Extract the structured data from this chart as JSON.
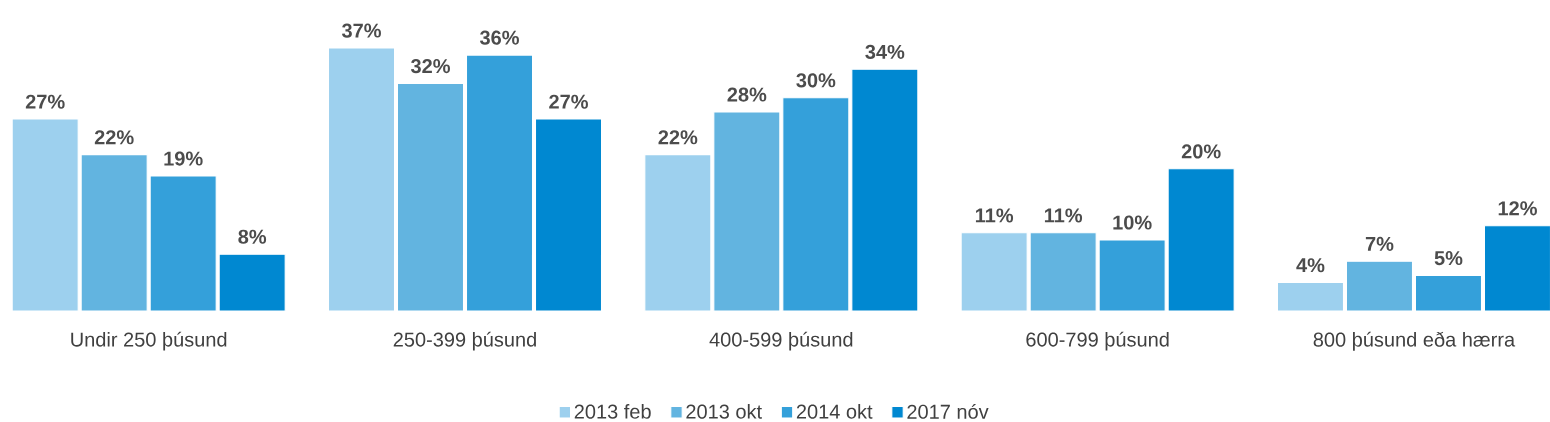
{
  "chart_data": {
    "type": "bar",
    "categories": [
      "Undir 250 þúsund",
      "250-399 þúsund",
      "400-599 þúsund",
      "600-799 þúsund",
      "800 þúsund eða hærra"
    ],
    "series": [
      {
        "name": "2013 feb",
        "color": "#9dd0ee",
        "values": [
          27,
          37,
          22,
          11,
          4
        ],
        "value_labels": [
          "27%",
          "37%",
          "22%",
          "11%",
          "4%"
        ]
      },
      {
        "name": "2013 okt",
        "color": "#62b4e0",
        "values": [
          22,
          32,
          28,
          11,
          7
        ],
        "value_labels": [
          "22%",
          "32%",
          "28%",
          "11%",
          "7%"
        ]
      },
      {
        "name": "2014 okt",
        "color": "#34a0da",
        "values": [
          19,
          36,
          30,
          10,
          5
        ],
        "value_labels": [
          "19%",
          "36%",
          "30%",
          "10%",
          "5%"
        ]
      },
      {
        "name": "2017 nóv",
        "color": "#0088d1",
        "values": [
          8,
          27,
          34,
          20,
          12
        ],
        "value_labels": [
          "8%",
          "27%",
          "34%",
          "20%",
          "12%"
        ]
      }
    ],
    "legend": "bottom"
  }
}
